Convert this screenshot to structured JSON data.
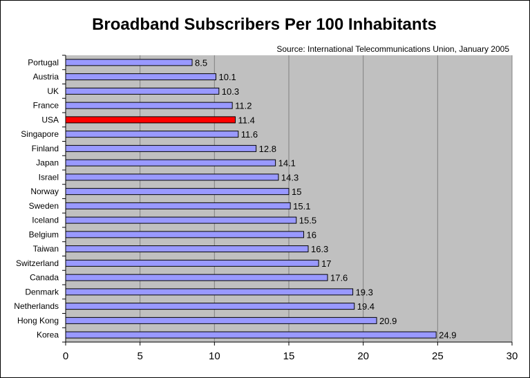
{
  "chart_data": {
    "type": "bar",
    "orientation": "horizontal",
    "title": "Broadband Subscribers Per 100 Inhabitants",
    "source": "Source: International Telecommunications Union, January 2005",
    "categories": [
      "Portugal",
      "Austria",
      "UK",
      "France",
      "USA",
      "Singapore",
      "Finland",
      "Japan",
      "Israel",
      "Norway",
      "Sweden",
      "Iceland",
      "Belgium",
      "Taiwan",
      "Switzerland",
      "Canada",
      "Denmark",
      "Netherlands",
      "Hong Kong",
      "Korea"
    ],
    "values": [
      8.5,
      10.1,
      10.3,
      11.2,
      11.4,
      11.6,
      12.8,
      14.1,
      14.3,
      15,
      15.1,
      15.5,
      16,
      16.3,
      17,
      17.6,
      19.3,
      19.4,
      20.9,
      24.9
    ],
    "value_labels": [
      "8.5",
      "10.1",
      "10.3",
      "11.2",
      "11.4",
      "11.6",
      "12.8",
      "14.1",
      "14.3",
      "15",
      "15.1",
      "15.5",
      "16",
      "16.3",
      "17",
      "17.6",
      "19.3",
      "19.4",
      "20.9",
      "24.9"
    ],
    "highlighted_category": "USA",
    "xlim": [
      0,
      30
    ],
    "x_ticks": [
      0,
      5,
      10,
      15,
      20,
      25,
      30
    ],
    "x_tick_labels": [
      "0",
      "5",
      "10",
      "15",
      "20",
      "25",
      "30"
    ],
    "grid": "vertical",
    "colors": {
      "bar": "#9999ff",
      "bar_highlight": "#ff0000",
      "plot_background": "#c0c0c0",
      "gridline": "#808080",
      "outline": "#000000"
    }
  }
}
